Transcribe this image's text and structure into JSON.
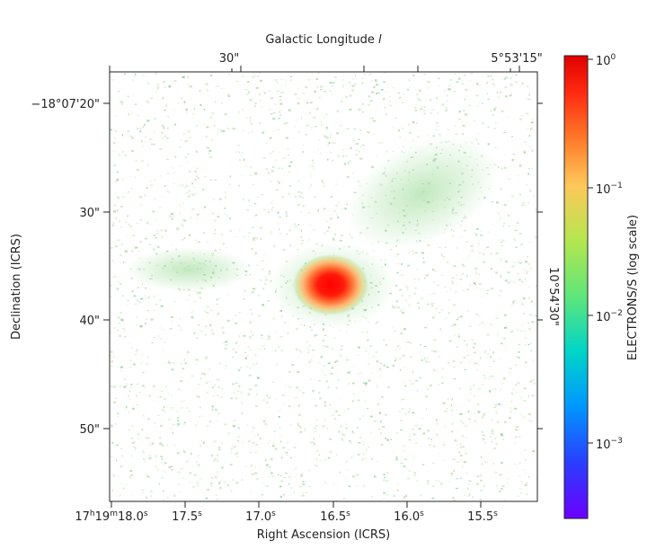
{
  "axes": {
    "top_label_prefix": "Galactic Longitude ",
    "top_label_var": "l",
    "bottom_label": "Right Ascension (ICRS)",
    "left_label": "Declination (ICRS)",
    "right_tick_label": "10°54'30\""
  },
  "top_ticks": [
    "30\"",
    "5°53'15\""
  ],
  "bottom_ticks": [
    {
      "main": "17",
      "h": "h",
      "m_val": "19",
      "m": "m",
      "s_val": "18.0",
      "s": "s"
    },
    {
      "main": "17.5",
      "s": "s"
    },
    {
      "main": "17.0",
      "s": "s"
    },
    {
      "main": "16.5",
      "s": "s"
    },
    {
      "main": "16.0",
      "s": "s"
    },
    {
      "main": "15.5",
      "s": "s"
    }
  ],
  "left_ticks": [
    "−18°07'20\"",
    "30\"",
    "40\"",
    "50\""
  ],
  "colorbar": {
    "label": "ELECTRONS/S (log scale)",
    "ticks": [
      {
        "base": "10",
        "exp": "0"
      },
      {
        "base": "10",
        "exp": "−1"
      },
      {
        "base": "10",
        "exp": "−2"
      },
      {
        "base": "10",
        "exp": "−3"
      }
    ],
    "colormap": [
      "#6b00ff",
      "#2a3dff",
      "#0096ff",
      "#00d4c8",
      "#5ee67a",
      "#b4e650",
      "#ffc85a",
      "#ff7a2a",
      "#ff2a10",
      "#e00000"
    ]
  },
  "image": {
    "source_peak_value": 1.0,
    "background_level": 0.01
  }
}
